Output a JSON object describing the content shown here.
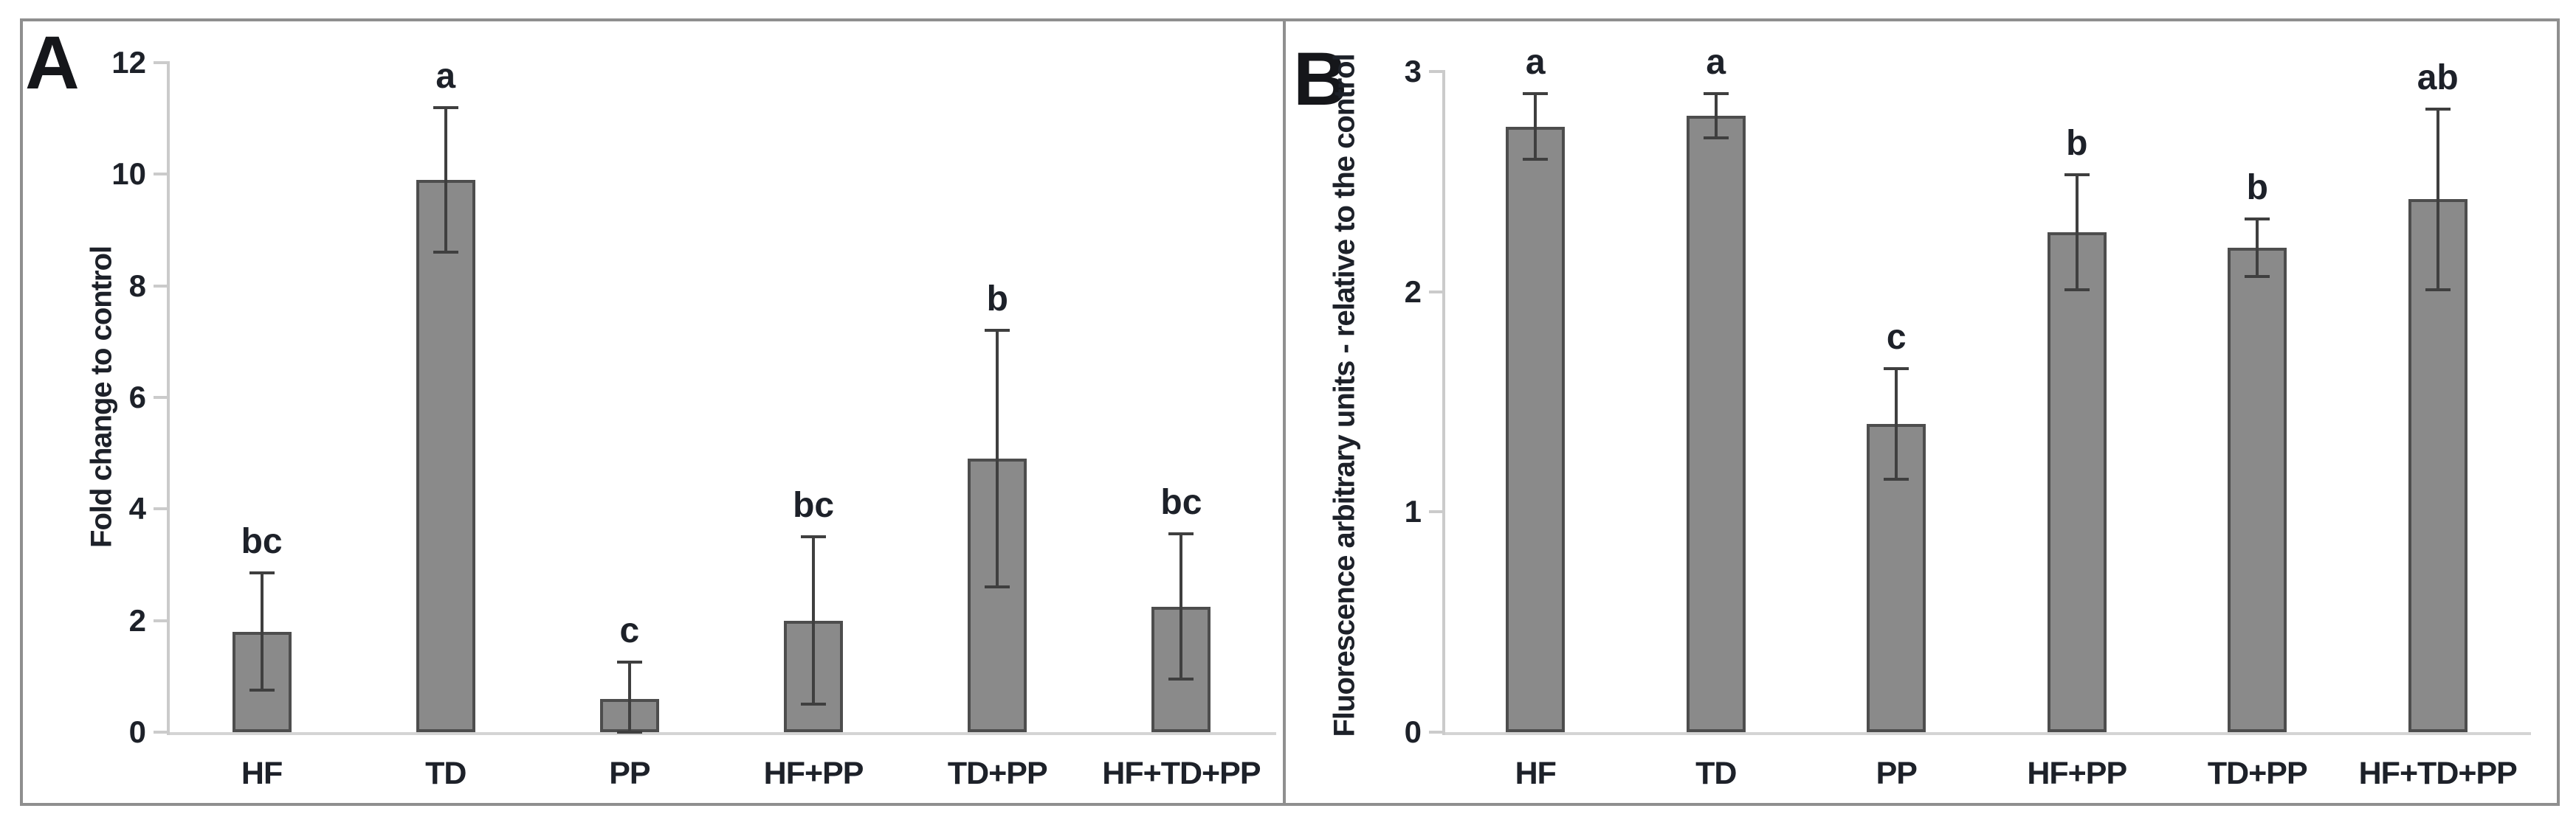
{
  "figure": {
    "description_colors": {
      "bar_fill": "#8a8a8a",
      "bar_border": "#4d4d4d",
      "error_bar": "#3f3f3f",
      "axis_line": "#cbcbcb",
      "border": "#8f8f8f",
      "text": "#1d2129"
    }
  },
  "chart_data": [
    {
      "type": "bar",
      "panel_letter": "A",
      "title": "",
      "ylabel": "Fold change to control",
      "xlabel": "",
      "ylim": [
        0,
        12
      ],
      "yticks": [
        0,
        2,
        4,
        6,
        8,
        10,
        12
      ],
      "grid": false,
      "legend": null,
      "categories": [
        "HF",
        "TD",
        "PP",
        "HF+PP",
        "TD+PP",
        "HF+TD+PP"
      ],
      "values": [
        1.8,
        9.9,
        0.6,
        2.0,
        4.9,
        2.25
      ],
      "error_plus": [
        1.05,
        1.3,
        0.65,
        1.5,
        2.3,
        1.3
      ],
      "error_minus": [
        1.05,
        1.3,
        0.6,
        1.5,
        2.3,
        1.3
      ],
      "sig_labels": [
        "bc",
        "a",
        "c",
        "bc",
        "b",
        "bc"
      ]
    },
    {
      "type": "bar",
      "panel_letter": "B",
      "title": "",
      "ylabel": "Fluorescence arbitrary units - relative to the control",
      "xlabel": "",
      "ylim": [
        0,
        3
      ],
      "yticks": [
        0,
        1,
        2,
        3
      ],
      "grid": false,
      "legend": null,
      "categories": [
        "HF",
        "TD",
        "PP",
        "HF+PP",
        "TD+PP",
        "HF+TD+PP"
      ],
      "values": [
        2.75,
        2.8,
        1.4,
        2.27,
        2.2,
        2.42
      ],
      "error_plus": [
        0.15,
        0.1,
        0.25,
        0.26,
        0.13,
        0.41
      ],
      "error_minus": [
        0.15,
        0.1,
        0.25,
        0.26,
        0.13,
        0.41
      ],
      "sig_labels": [
        "a",
        "a",
        "c",
        "b",
        "b",
        "ab"
      ]
    }
  ]
}
